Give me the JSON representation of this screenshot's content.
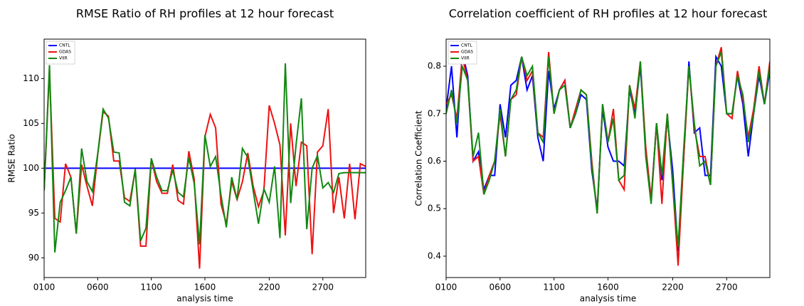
{
  "chart_data": [
    {
      "type": "line",
      "title": "RMSE Ratio of RH profiles at 12 hour forecast",
      "x_label": "analysis time",
      "y_label": "RMSE Ratio",
      "categories": [
        "0100",
        null,
        null,
        null,
        null,
        null,
        null,
        null,
        null,
        null,
        "0600",
        null,
        null,
        null,
        null,
        null,
        null,
        null,
        null,
        null,
        "1100",
        null,
        null,
        null,
        null,
        null,
        null,
        null,
        null,
        null,
        "1600",
        null,
        null,
        null,
        null,
        null,
        null,
        null,
        null,
        null,
        null,
        null,
        "2200",
        null,
        null,
        null,
        null,
        null,
        null,
        null,
        null,
        null,
        "2700",
        null,
        null,
        null,
        null,
        null,
        null,
        null,
        null
      ],
      "ylim": [
        87.8,
        114.4
      ],
      "yticks": [
        90,
        95,
        100,
        105,
        110
      ],
      "legend": "upper left",
      "series": [
        {
          "name": "CNTL",
          "color": "#0000ff",
          "values": [
            100,
            100,
            100,
            100,
            100,
            100,
            100,
            100,
            100,
            100,
            100,
            100,
            100,
            100,
            100,
            100,
            100,
            100,
            100,
            100,
            100,
            100,
            100,
            100,
            100,
            100,
            100,
            100,
            100,
            100,
            100,
            100,
            100,
            100,
            100,
            100,
            100,
            100,
            100,
            100,
            100,
            100,
            100,
            100,
            100,
            100,
            100,
            100,
            100,
            100,
            100,
            100,
            100,
            100,
            100,
            100,
            100,
            100,
            100,
            100,
            100
          ]
        },
        {
          "name": "GDAS",
          "color": "#ee1111",
          "values": [
            97.5,
            111,
            94.4,
            94,
            100.5,
            99,
            92.7,
            100.4,
            98,
            95.8,
            101.5,
            106.3,
            105.8,
            100.8,
            100.8,
            96.7,
            96.3,
            99.8,
            91.3,
            91.3,
            101,
            98.5,
            97.2,
            97.2,
            100.4,
            96.4,
            96,
            101.9,
            98.8,
            88.8,
            103.5,
            106,
            104.5,
            96,
            93.8,
            98.5,
            96.5,
            98.5,
            101.7,
            98,
            95.7,
            97.5,
            107,
            105,
            102.6,
            92.5,
            105,
            98,
            102.9,
            102.5,
            90.4,
            101.8,
            102.5,
            106.6,
            95,
            99,
            94.4,
            100.5,
            94.3,
            100.5,
            100.2
          ]
        },
        {
          "name": "VIIR",
          "color": "#118811",
          "values": [
            97.5,
            111.5,
            90.6,
            96.2,
            97.5,
            99,
            92.7,
            102.2,
            98.5,
            97.4,
            101.6,
            106.6,
            105.6,
            101.8,
            101.7,
            96.2,
            95.8,
            99.9,
            91.9,
            93.3,
            101.1,
            99,
            97.5,
            97.5,
            99.8,
            97.3,
            96.8,
            101.2,
            98.3,
            91.5,
            103.7,
            100.2,
            101.3,
            97,
            93.4,
            99,
            96.5,
            102.2,
            101.2,
            97.5,
            93.8,
            97.7,
            96.2,
            100.2,
            92.2,
            111.7,
            96.1,
            102.6,
            107.8,
            93.2,
            100,
            101.4,
            97.8,
            98.4,
            97.3,
            99.4,
            99.5,
            99.5,
            99.5,
            99.5,
            99.5
          ]
        }
      ]
    },
    {
      "type": "line",
      "title": "Correlation coefficient of RH profiles at 12 hour forecast",
      "x_label": "analysis time",
      "y_label": "Correlation Coefficient",
      "categories": [
        "0100",
        null,
        null,
        null,
        null,
        null,
        null,
        null,
        null,
        null,
        "0600",
        null,
        null,
        null,
        null,
        null,
        null,
        null,
        null,
        null,
        "1100",
        null,
        null,
        null,
        null,
        null,
        null,
        null,
        null,
        null,
        "1600",
        null,
        null,
        null,
        null,
        null,
        null,
        null,
        null,
        null,
        null,
        null,
        "2200",
        null,
        null,
        null,
        null,
        null,
        null,
        null,
        null,
        null,
        "2700",
        null,
        null,
        null,
        null,
        null,
        null,
        null,
        null
      ],
      "ylim": [
        0.355,
        0.857
      ],
      "yticks": [
        0.4,
        0.5,
        0.6,
        0.7,
        0.8
      ],
      "legend": "upper left",
      "series": [
        {
          "name": "CNTL",
          "color": "#0000ff",
          "values": [
            0.71,
            0.8,
            0.65,
            0.83,
            0.78,
            0.6,
            0.62,
            0.54,
            0.57,
            0.57,
            0.72,
            0.65,
            0.76,
            0.77,
            0.82,
            0.75,
            0.78,
            0.65,
            0.6,
            0.79,
            0.71,
            0.75,
            0.77,
            0.67,
            0.7,
            0.74,
            0.73,
            0.58,
            0.5,
            0.71,
            0.63,
            0.6,
            0.6,
            0.59,
            0.75,
            0.7,
            0.8,
            0.62,
            0.52,
            0.68,
            0.56,
            0.69,
            0.58,
            0.41,
            0.6,
            0.81,
            0.66,
            0.67,
            0.57,
            0.57,
            0.82,
            0.8,
            0.7,
            0.7,
            0.78,
            0.72,
            0.61,
            0.7,
            0.78,
            0.72,
            0.79
          ]
        },
        {
          "name": "GDAS",
          "color": "#ee1111",
          "values": [
            0.72,
            0.74,
            0.69,
            0.82,
            0.77,
            0.6,
            0.61,
            0.53,
            0.57,
            0.6,
            0.7,
            0.61,
            0.73,
            0.74,
            0.82,
            0.77,
            0.79,
            0.66,
            0.65,
            0.83,
            0.7,
            0.75,
            0.77,
            0.67,
            0.71,
            0.75,
            0.74,
            0.6,
            0.49,
            0.72,
            0.64,
            0.71,
            0.56,
            0.54,
            0.76,
            0.71,
            0.81,
            0.63,
            0.52,
            0.68,
            0.51,
            0.7,
            0.55,
            0.38,
            0.6,
            0.8,
            0.67,
            0.61,
            0.61,
            0.55,
            0.8,
            0.84,
            0.7,
            0.69,
            0.79,
            0.73,
            0.65,
            0.71,
            0.8,
            0.72,
            0.81
          ]
        },
        {
          "name": "VIIR",
          "color": "#118811",
          "values": [
            0.7,
            0.75,
            0.68,
            0.8,
            0.77,
            0.61,
            0.66,
            0.53,
            0.56,
            0.6,
            0.71,
            0.61,
            0.73,
            0.75,
            0.82,
            0.78,
            0.8,
            0.66,
            0.64,
            0.82,
            0.7,
            0.75,
            0.76,
            0.67,
            0.7,
            0.75,
            0.74,
            0.59,
            0.49,
            0.72,
            0.64,
            0.69,
            0.56,
            0.57,
            0.76,
            0.69,
            0.81,
            0.61,
            0.51,
            0.68,
            0.57,
            0.7,
            0.55,
            0.42,
            0.62,
            0.8,
            0.68,
            0.59,
            0.6,
            0.55,
            0.8,
            0.83,
            0.7,
            0.7,
            0.78,
            0.74,
            0.64,
            0.7,
            0.79,
            0.72,
            0.8
          ]
        }
      ]
    }
  ]
}
